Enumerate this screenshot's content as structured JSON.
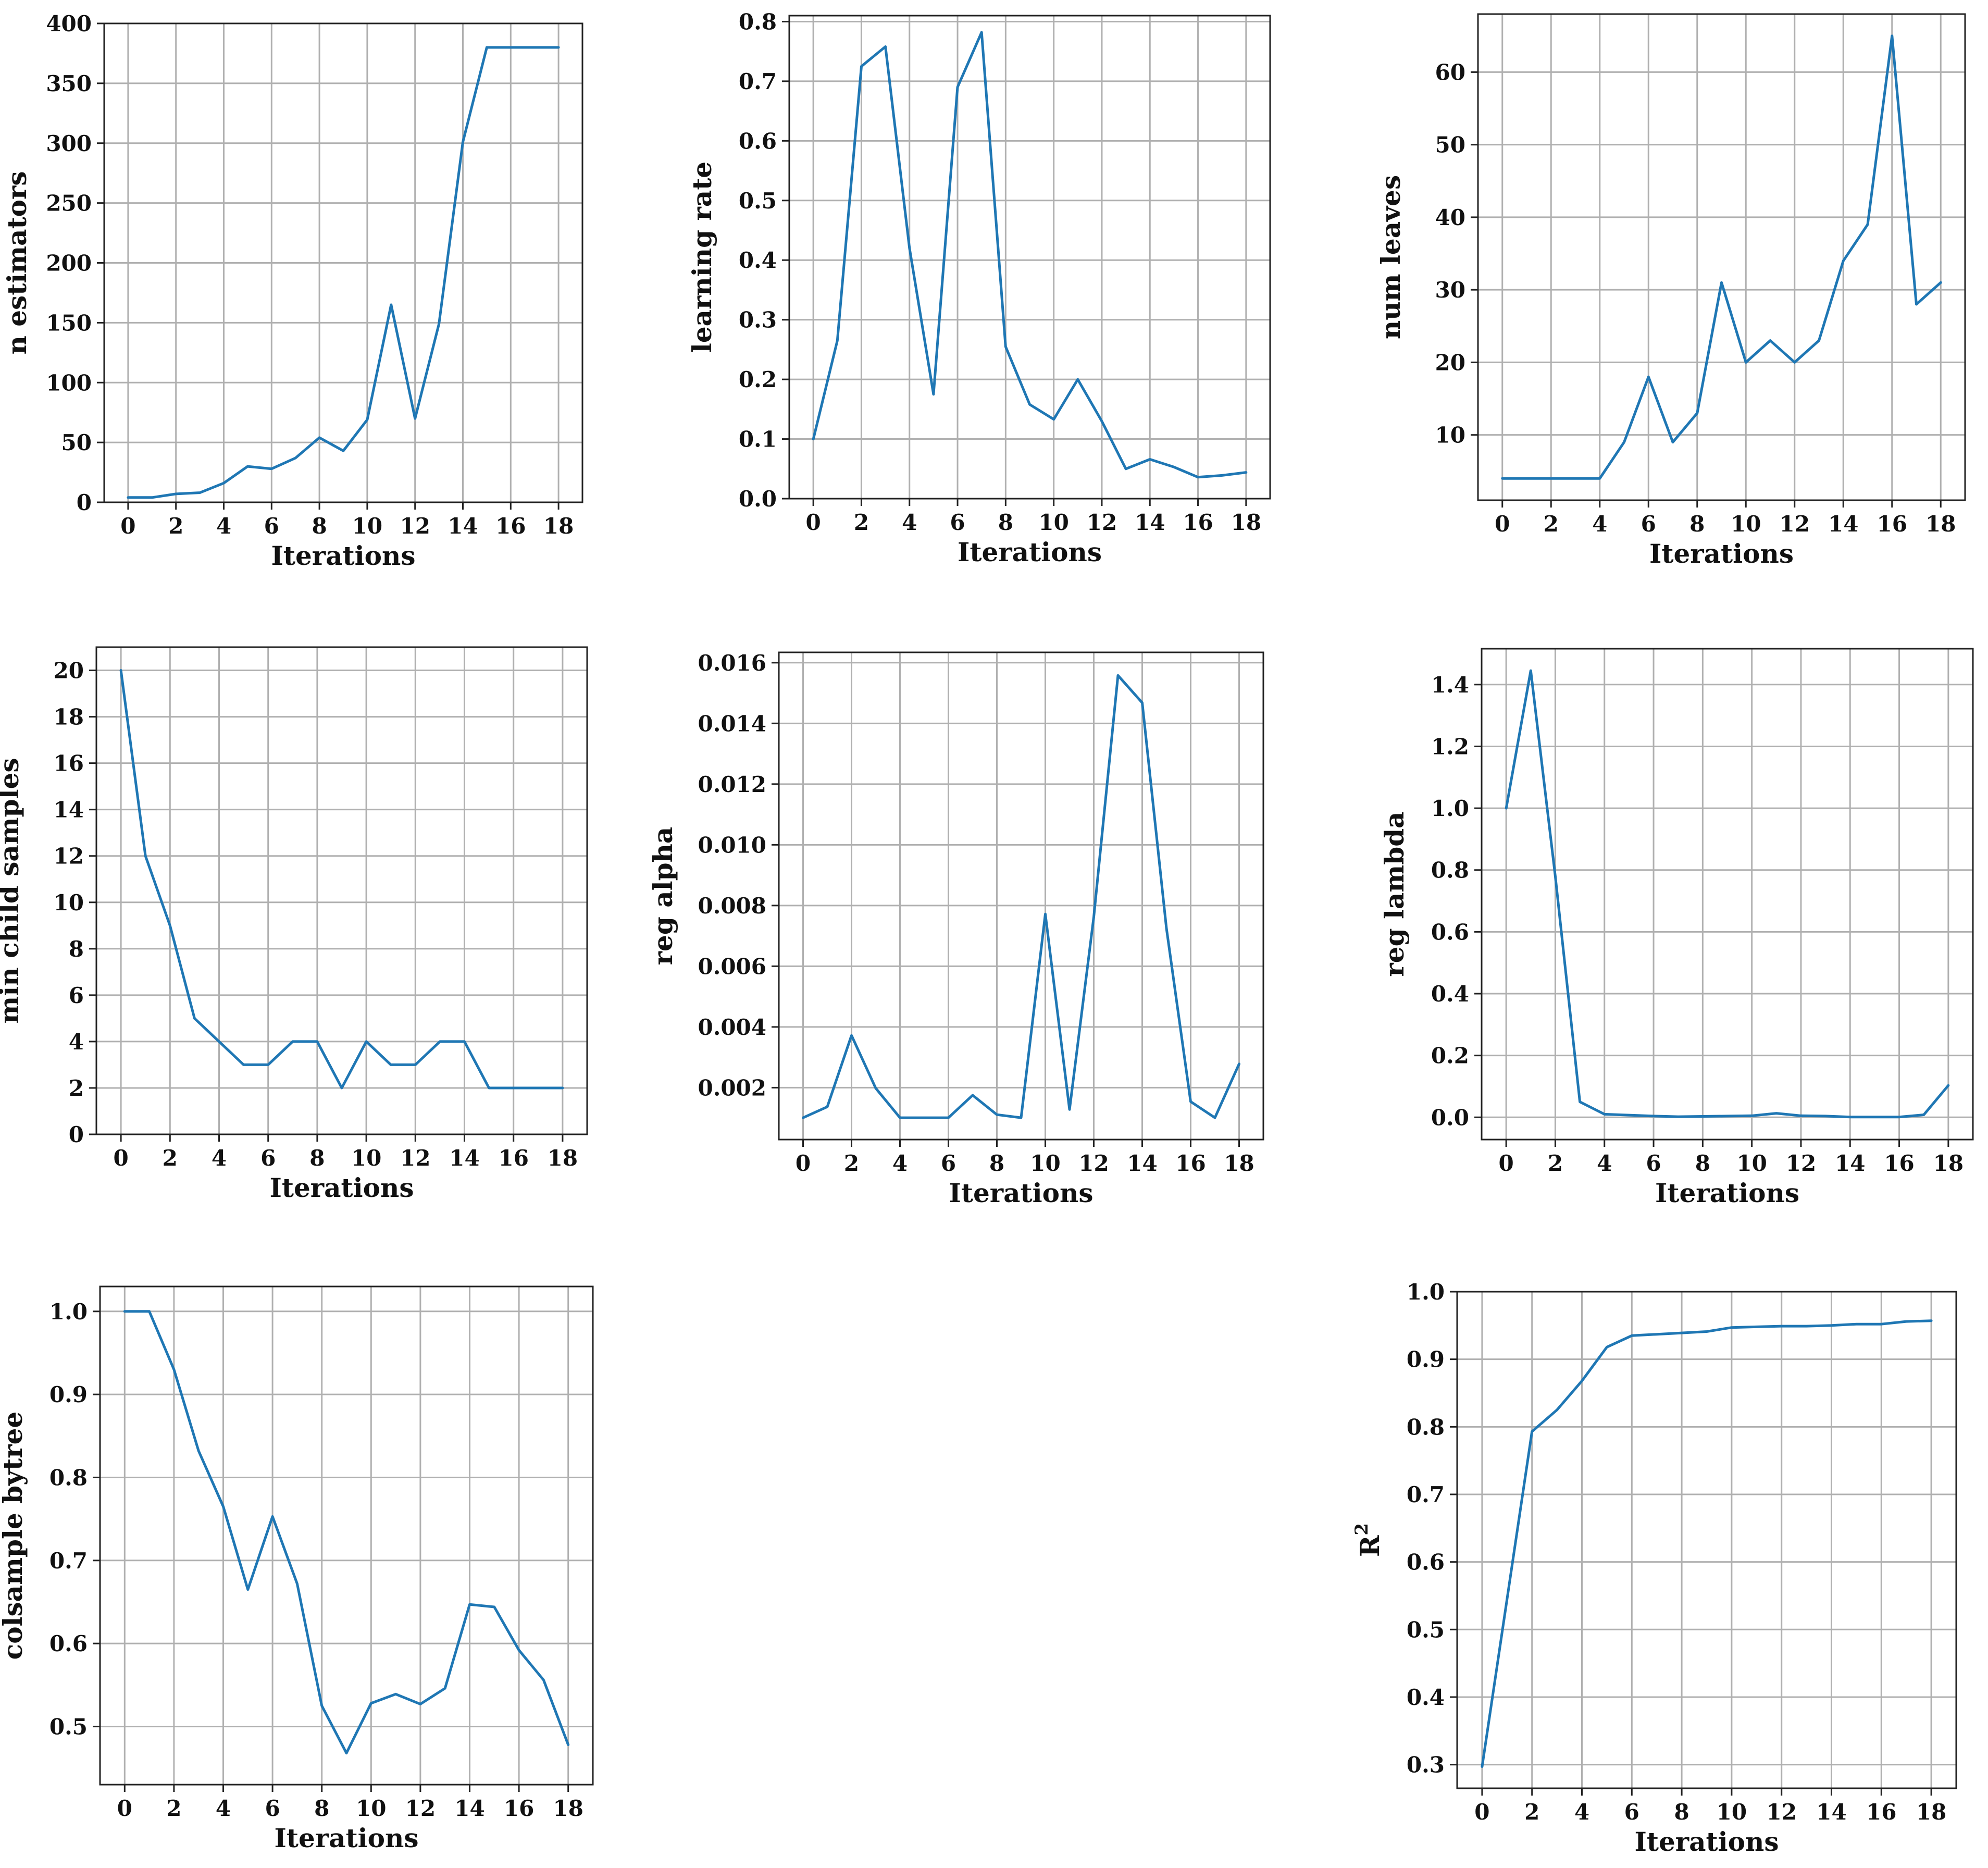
{
  "colors": {
    "series": "#1f77b4",
    "grid": "#b0b0b0",
    "axis": "#222222"
  },
  "chart_data": [
    {
      "type": "line",
      "grid": true,
      "xlabel": "Iterations",
      "ylabel": "n estimators",
      "x": [
        0,
        1,
        2,
        3,
        4,
        5,
        6,
        7,
        8,
        9,
        10,
        11,
        12,
        13,
        14,
        15,
        16,
        17,
        18
      ],
      "y": [
        4,
        4,
        7,
        8,
        16,
        30,
        28,
        37,
        54,
        43,
        69,
        165,
        70,
        149,
        301,
        380,
        380,
        380,
        380
      ],
      "xlim": [
        -1,
        19
      ],
      "ylim": [
        0,
        400
      ],
      "xticks": [
        0,
        2,
        4,
        6,
        8,
        10,
        12,
        14,
        16,
        18
      ],
      "yticks": [
        0,
        50,
        100,
        150,
        200,
        250,
        300,
        350,
        400
      ],
      "ytick_labels": [
        "0",
        "50",
        "100",
        "150",
        "200",
        "250",
        "300",
        "350",
        "400"
      ]
    },
    {
      "type": "line",
      "grid": true,
      "xlabel": "Iterations",
      "ylabel": "learning rate",
      "x": [
        0,
        1,
        2,
        3,
        4,
        5,
        6,
        7,
        8,
        9,
        10,
        11,
        12,
        13,
        14,
        15,
        16,
        17,
        18
      ],
      "y": [
        0.1,
        0.265,
        0.725,
        0.758,
        0.42,
        0.175,
        0.69,
        0.782,
        0.255,
        0.158,
        0.133,
        0.2,
        0.13,
        0.05,
        0.066,
        0.053,
        0.036,
        0.039,
        0.044
      ],
      "xlim": [
        -1,
        19
      ],
      "ylim": [
        0,
        0.81
      ],
      "xticks": [
        0,
        2,
        4,
        6,
        8,
        10,
        12,
        14,
        16,
        18
      ],
      "yticks": [
        0,
        0.1,
        0.2,
        0.3,
        0.4,
        0.5,
        0.6,
        0.7,
        0.8
      ],
      "ytick_labels": [
        "0.0",
        "0.1",
        "0.2",
        "0.3",
        "0.4",
        "0.5",
        "0.6",
        "0.7",
        "0.8"
      ]
    },
    {
      "type": "line",
      "grid": true,
      "xlabel": "Iterations",
      "ylabel": "num leaves",
      "x": [
        0,
        1,
        2,
        3,
        4,
        5,
        6,
        7,
        8,
        9,
        10,
        11,
        12,
        13,
        14,
        15,
        16,
        17,
        18
      ],
      "y": [
        4,
        4,
        4,
        4,
        4,
        9,
        18,
        9,
        13,
        31,
        20,
        23,
        20,
        23,
        34,
        39,
        65,
        28,
        31
      ],
      "xlim": [
        -1,
        19
      ],
      "ylim": [
        1,
        68
      ],
      "xticks": [
        0,
        2,
        4,
        6,
        8,
        10,
        12,
        14,
        16,
        18
      ],
      "yticks": [
        10,
        20,
        30,
        40,
        50,
        60
      ],
      "ytick_labels": [
        "10",
        "20",
        "30",
        "40",
        "50",
        "60"
      ]
    },
    {
      "type": "line",
      "grid": true,
      "xlabel": "Iterations",
      "ylabel": "min child samples",
      "x": [
        0,
        1,
        2,
        3,
        4,
        5,
        6,
        7,
        8,
        9,
        10,
        11,
        12,
        13,
        14,
        15,
        16,
        17,
        18
      ],
      "y": [
        20,
        12,
        9,
        5,
        4,
        3,
        3,
        4,
        4,
        2,
        4,
        3,
        3,
        4,
        4,
        2,
        2,
        2,
        2
      ],
      "xlim": [
        -1,
        19
      ],
      "ylim": [
        0,
        21
      ],
      "xticks": [
        0,
        2,
        4,
        6,
        8,
        10,
        12,
        14,
        16,
        18
      ],
      "yticks": [
        0,
        2,
        4,
        6,
        8,
        10,
        12,
        14,
        16,
        18,
        20
      ],
      "ytick_labels": [
        "0",
        "2",
        "4",
        "6",
        "8",
        "10",
        "12",
        "14",
        "16",
        "18",
        "20"
      ]
    },
    {
      "type": "line",
      "grid": true,
      "xlabel": "Iterations",
      "ylabel": "reg alpha",
      "x": [
        0,
        1,
        2,
        3,
        4,
        5,
        6,
        7,
        8,
        9,
        10,
        11,
        12,
        13,
        14,
        15,
        16,
        17,
        18
      ],
      "y": [
        0.00101,
        0.00137,
        0.00372,
        0.00198,
        0.00101,
        0.00101,
        0.00101,
        0.00175,
        0.00111,
        0.00101,
        0.00772,
        0.00128,
        0.00762,
        0.01558,
        0.01468,
        0.00725,
        0.00154,
        0.00101,
        0.00278
      ],
      "xlim": [
        -1,
        19
      ],
      "ylim": [
        0.00029,
        0.01634
      ],
      "xticks": [
        0,
        2,
        4,
        6,
        8,
        10,
        12,
        14,
        16,
        18
      ],
      "yticks": [
        0.002,
        0.004,
        0.006,
        0.008,
        0.01,
        0.012,
        0.014,
        0.016
      ],
      "ytick_labels": [
        "0.002",
        "0.004",
        "0.006",
        "0.008",
        "0.010",
        "0.012",
        "0.014",
        "0.016"
      ]
    },
    {
      "type": "line",
      "grid": true,
      "xlabel": "Iterations",
      "ylabel": "reg lambda",
      "x": [
        0,
        1,
        2,
        3,
        4,
        5,
        6,
        7,
        8,
        9,
        10,
        11,
        12,
        13,
        14,
        15,
        16,
        17,
        18
      ],
      "y": [
        1.0,
        1.445,
        0.78,
        0.05,
        0.01,
        0.007,
        0.004,
        0.002,
        0.003,
        0.004,
        0.005,
        0.013,
        0.005,
        0.004,
        0.001,
        0.001,
        0.001,
        0.008,
        0.103
      ],
      "xlim": [
        -1,
        19
      ],
      "ylim": [
        -0.072,
        1.516
      ],
      "xticks": [
        0,
        2,
        4,
        6,
        8,
        10,
        12,
        14,
        16,
        18
      ],
      "yticks": [
        0,
        0.2,
        0.4,
        0.6,
        0.8,
        1.0,
        1.2,
        1.4
      ],
      "ytick_labels": [
        "0.0",
        "0.2",
        "0.4",
        "0.6",
        "0.8",
        "1.0",
        "1.2",
        "1.4"
      ]
    },
    {
      "type": "line",
      "grid": true,
      "xlabel": "Iterations",
      "ylabel": "colsample bytree",
      "x": [
        0,
        1,
        2,
        3,
        4,
        5,
        6,
        7,
        8,
        9,
        10,
        11,
        12,
        13,
        14,
        15,
        16,
        17,
        18
      ],
      "y": [
        1.0,
        1.0,
        0.93,
        0.832,
        0.765,
        0.665,
        0.753,
        0.672,
        0.525,
        0.468,
        0.528,
        0.539,
        0.527,
        0.546,
        0.647,
        0.644,
        0.592,
        0.556,
        0.478
      ],
      "xlim": [
        -1,
        19
      ],
      "ylim": [
        0.43,
        1.03
      ],
      "xticks": [
        0,
        2,
        4,
        6,
        8,
        10,
        12,
        14,
        16,
        18
      ],
      "yticks": [
        0.5,
        0.6,
        0.7,
        0.8,
        0.9,
        1.0
      ],
      "ytick_labels": [
        "0.5",
        "0.6",
        "0.7",
        "0.8",
        "0.9",
        "1.0"
      ]
    },
    {
      "type": "line",
      "grid": true,
      "xlabel": "Iterations",
      "ylabel": "R",
      "ylabel_superscript": "2",
      "x": [
        0,
        1,
        2,
        3,
        4,
        5,
        6,
        7,
        8,
        9,
        10,
        11,
        12,
        13,
        14,
        15,
        16,
        17,
        18
      ],
      "y": [
        0.297,
        0.545,
        0.793,
        0.825,
        0.868,
        0.918,
        0.935,
        0.937,
        0.939,
        0.941,
        0.947,
        0.948,
        0.949,
        0.949,
        0.95,
        0.952,
        0.952,
        0.956,
        0.957
      ],
      "xlim": [
        -1,
        19
      ],
      "ylim": [
        0.265,
        1.0
      ],
      "xticks": [
        0,
        2,
        4,
        6,
        8,
        10,
        12,
        14,
        16,
        18
      ],
      "yticks": [
        0.3,
        0.4,
        0.5,
        0.6,
        0.7,
        0.8,
        0.9,
        1.0
      ],
      "ytick_labels": [
        "0.3",
        "0.4",
        "0.5",
        "0.6",
        "0.7",
        "0.8",
        "0.9",
        "1.0"
      ]
    }
  ]
}
